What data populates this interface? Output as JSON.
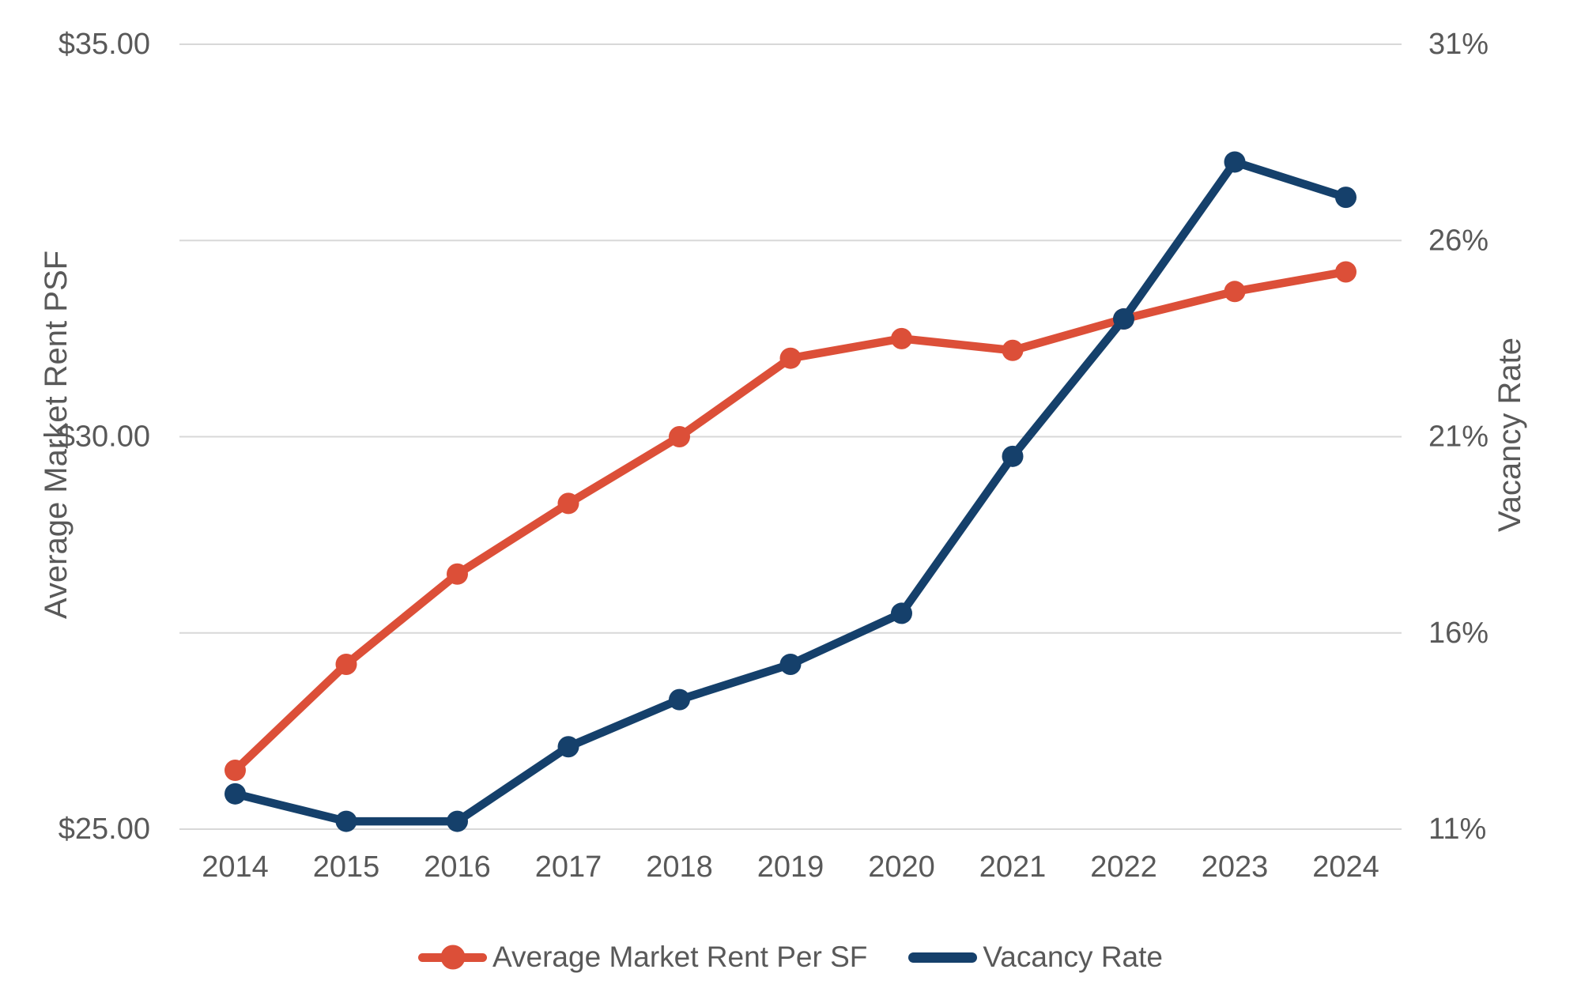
{
  "chart_data": {
    "type": "line",
    "x": [
      "2014",
      "2015",
      "2016",
      "2017",
      "2018",
      "2019",
      "2020",
      "2021",
      "2022",
      "2023",
      "2024"
    ],
    "series": [
      {
        "name": "Average Market Rent Per SF",
        "axis": "left",
        "color": "#DC4F38",
        "marker": "circle",
        "values": [
          25.75,
          27.1,
          28.25,
          29.15,
          30.0,
          31.0,
          31.25,
          31.1,
          31.5,
          31.85,
          32.1
        ]
      },
      {
        "name": "Vacancy Rate",
        "axis": "right",
        "color": "#15406B",
        "marker": "circle",
        "values": [
          11.9,
          11.2,
          11.2,
          13.1,
          14.3,
          15.2,
          16.5,
          20.5,
          24.0,
          28.0,
          27.1
        ]
      }
    ],
    "left_axis": {
      "title": "Average Market Rent PSF",
      "min": 25,
      "max": 35,
      "ticks": [
        {
          "value": 35,
          "label": "$35.00"
        },
        {
          "value": 30,
          "label": "$30.00"
        },
        {
          "value": 25,
          "label": "$25.00"
        }
      ]
    },
    "right_axis": {
      "title": "Vacancy Rate",
      "min": 11,
      "max": 31,
      "ticks": [
        {
          "value": 31,
          "label": "31%"
        },
        {
          "value": 26,
          "label": "26%"
        },
        {
          "value": 21,
          "label": "21%"
        },
        {
          "value": 16,
          "label": "16%"
        },
        {
          "value": 11,
          "label": "11%"
        }
      ]
    },
    "grid": "horizontal",
    "legend": {
      "position": "bottom",
      "items": [
        "Average Market Rent Per SF",
        "Vacancy Rate"
      ]
    },
    "style": {
      "grid_color": "#D8D8D8",
      "text_color": "#595959",
      "background": "#FFFFFF"
    }
  }
}
